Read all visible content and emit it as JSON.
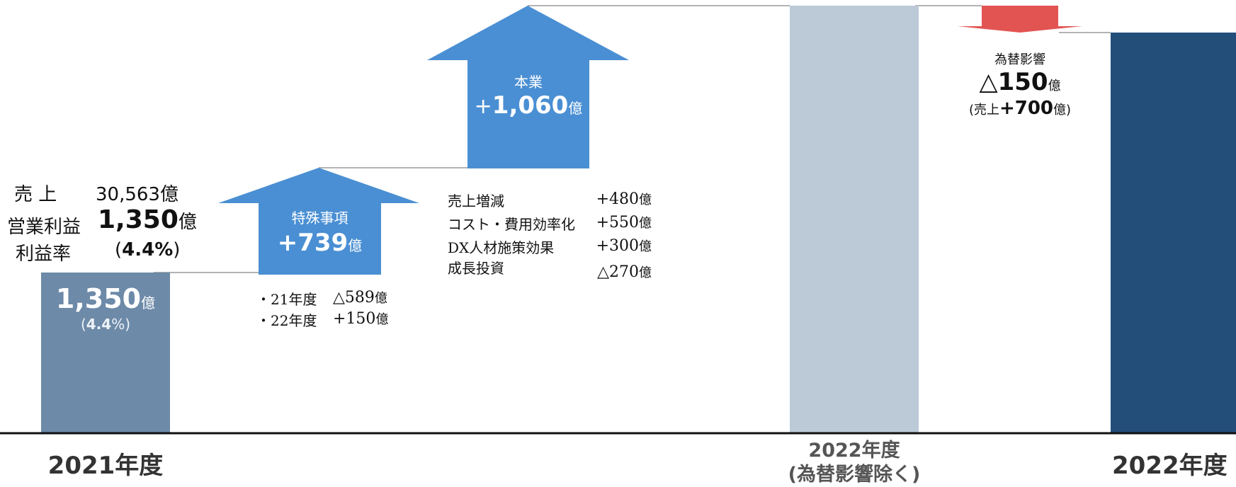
{
  "chart_data": {
    "type": "waterfall",
    "title": "",
    "categories": [
      "2021年度",
      "2022年度",
      "(為替影響除く)",
      "2022年度"
    ],
    "colors": {
      "base_2021": "#6d8aa8",
      "increase_arrow": "#4a8fd3",
      "base_2022_ex_fx": "#bccad8",
      "fx_arrow": "#e25452",
      "total_2022": "#234e7a",
      "axis": "#111111",
      "connector": "#999999"
    },
    "steps": [
      {
        "label": "2021年度",
        "kind": "total",
        "value": 1350
      },
      {
        "label": "特殊事項",
        "kind": "increase",
        "delta": 739
      },
      {
        "label": "本業",
        "kind": "increase",
        "delta": 1060
      },
      {
        "label": "2022年度(為替影響除く)",
        "kind": "subtotal"
      },
      {
        "label": "為替影響",
        "kind": "decrease",
        "delta": -150
      },
      {
        "label": "2022年度",
        "kind": "total"
      }
    ]
  },
  "summary_2021": {
    "sales_label": "売 上",
    "sales_value": "30,563",
    "op_label": "営業利益",
    "op_value": "1,350",
    "margin_label": "利益率",
    "margin_open": "(",
    "margin_value": "4.4%",
    "margin_close": ")",
    "unit": "億"
  },
  "bar_2021": {
    "value": "1,350",
    "unit": "億",
    "pct_open": "(",
    "pct_value": "4.4",
    "pct_close": "%)"
  },
  "special": {
    "title": "特殊事項",
    "value": "+739",
    "unit": "億",
    "items": [
      {
        "label": "・21年度",
        "value": "△589",
        "unit": "億"
      },
      {
        "label": "・22年度",
        "value": "+150",
        "unit": "億"
      }
    ]
  },
  "core": {
    "title": "本業",
    "value_sign": "+",
    "value": "1,060",
    "unit": "億",
    "items": [
      {
        "label": "売上増減",
        "value": "+480",
        "unit": "億"
      },
      {
        "label": "コスト・費用効率化",
        "value": "+550",
        "unit": "億"
      },
      {
        "label": "DX人材施策効果",
        "value": "+300",
        "unit": "億"
      },
      {
        "label": "成長投資",
        "value": "△270",
        "unit": "億"
      }
    ]
  },
  "fx": {
    "title": "為替影響",
    "value": "△150",
    "unit": "億",
    "sub_open": "(売上",
    "sub_value": "+700",
    "sub_close": "億)"
  },
  "x_labels": {
    "y2021": "2021年度",
    "y2022_ex_line1": "2022年度",
    "y2022_ex_line2": "(為替影響除く)",
    "y2022": "2022年度"
  }
}
